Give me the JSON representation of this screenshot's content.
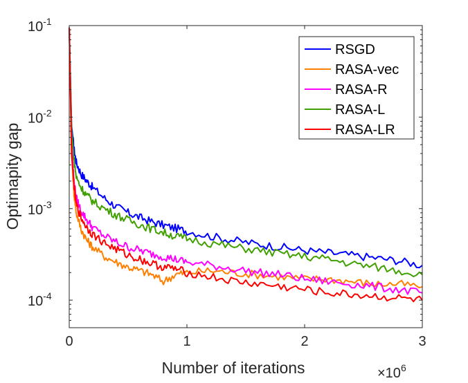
{
  "chart_data": {
    "type": "line",
    "title": "",
    "xlabel": "Number of iterations",
    "ylabel": "Optimapity gap",
    "x_multiplier": "×10",
    "x_multiplier_exp": "6",
    "xscale": "linear",
    "yscale": "log",
    "xlim": [
      0,
      3
    ],
    "ylim": [
      5e-05,
      0.1
    ],
    "grid": false,
    "legend_position": "top-right",
    "x_ticks": [
      {
        "value": 0,
        "label": "0"
      },
      {
        "value": 1,
        "label": "1"
      },
      {
        "value": 2,
        "label": "2"
      },
      {
        "value": 3,
        "label": "3"
      }
    ],
    "y_ticks": [
      {
        "value": 0.0001,
        "base": "10",
        "exp": "-4"
      },
      {
        "value": 0.001,
        "base": "10",
        "exp": "-3"
      },
      {
        "value": 0.01,
        "base": "10",
        "exp": "-2"
      },
      {
        "value": 0.1,
        "base": "10",
        "exp": "-1"
      }
    ],
    "series": [
      {
        "name": "RSGD",
        "color": "#0000ff",
        "x": [
          0,
          0.02,
          0.04,
          0.06,
          0.1,
          0.15,
          0.2,
          0.3,
          0.4,
          0.5,
          0.6,
          0.7,
          0.8,
          0.9,
          1.0,
          1.2,
          1.4,
          1.6,
          1.8,
          2.0,
          2.2,
          2.4,
          2.6,
          2.8,
          3.0
        ],
        "values": [
          0.095,
          0.008,
          0.0045,
          0.0032,
          0.0024,
          0.002,
          0.0017,
          0.0013,
          0.00105,
          0.0009,
          0.0008,
          0.00072,
          0.00066,
          0.00061,
          0.00057,
          0.0005,
          0.00045,
          0.00041,
          0.00038,
          0.00035,
          0.00033,
          0.00031,
          0.00029,
          0.00027,
          0.00024
        ]
      },
      {
        "name": "RASA-vec",
        "color": "#ff8000",
        "x": [
          0,
          0.02,
          0.04,
          0.06,
          0.1,
          0.15,
          0.2,
          0.3,
          0.4,
          0.5,
          0.6,
          0.7,
          0.8,
          0.9,
          1.0,
          1.2,
          1.4,
          1.6,
          1.8,
          2.0,
          2.2,
          2.4,
          2.6,
          2.8,
          3.0
        ],
        "values": [
          0.095,
          0.004,
          0.0015,
          0.0009,
          0.0006,
          0.00045,
          0.00038,
          0.0003,
          0.00026,
          0.00023,
          0.00021,
          0.00019,
          0.00016,
          0.00019,
          0.0002,
          0.00021,
          0.0002,
          0.00019,
          0.00018,
          0.00017,
          0.00017,
          0.00016,
          0.00015,
          0.00015,
          0.00014
        ]
      },
      {
        "name": "RASA-R",
        "color": "#ff00ff",
        "x": [
          0,
          0.02,
          0.04,
          0.06,
          0.1,
          0.15,
          0.2,
          0.3,
          0.4,
          0.5,
          0.6,
          0.7,
          0.8,
          0.9,
          1.0,
          1.2,
          1.4,
          1.6,
          1.8,
          2.0,
          2.2,
          2.4,
          2.6,
          2.8,
          3.0
        ],
        "values": [
          0.095,
          0.005,
          0.002,
          0.0013,
          0.00095,
          0.00075,
          0.00062,
          0.0005,
          0.00043,
          0.00038,
          0.00035,
          0.00032,
          0.0003,
          0.00028,
          0.00026,
          0.00024,
          0.00022,
          0.0002,
          0.00019,
          0.00017,
          0.00016,
          0.00015,
          0.00014,
          0.00013,
          0.00012
        ]
      },
      {
        "name": "RASA-L",
        "color": "#40a000",
        "x": [
          0,
          0.02,
          0.04,
          0.06,
          0.1,
          0.15,
          0.2,
          0.3,
          0.4,
          0.5,
          0.6,
          0.7,
          0.8,
          0.9,
          1.0,
          1.2,
          1.4,
          1.6,
          1.8,
          2.0,
          2.2,
          2.4,
          2.6,
          2.8,
          3.0
        ],
        "values": [
          0.095,
          0.007,
          0.0035,
          0.0022,
          0.0017,
          0.0014,
          0.0012,
          0.001,
          0.00085,
          0.00075,
          0.00067,
          0.0006,
          0.00055,
          0.0005,
          0.00047,
          0.00042,
          0.00038,
          0.00035,
          0.00032,
          0.0003,
          0.00028,
          0.00025,
          0.00023,
          0.00021,
          0.00019
        ]
      },
      {
        "name": "RASA-LR",
        "color": "#ff0000",
        "x": [
          0,
          0.02,
          0.04,
          0.06,
          0.1,
          0.15,
          0.2,
          0.3,
          0.4,
          0.5,
          0.6,
          0.7,
          0.8,
          0.9,
          1.0,
          1.2,
          1.4,
          1.6,
          1.8,
          2.0,
          2.2,
          2.4,
          2.6,
          2.8,
          3.0
        ],
        "values": [
          0.095,
          0.004,
          0.0018,
          0.0011,
          0.0008,
          0.00062,
          0.00052,
          0.00042,
          0.00036,
          0.00031,
          0.00028,
          0.00025,
          0.00023,
          0.00022,
          0.0002,
          0.00018,
          0.00016,
          0.00015,
          0.00014,
          0.00013,
          0.00012,
          0.000115,
          0.00011,
          0.000105,
          0.0001
        ]
      }
    ]
  }
}
